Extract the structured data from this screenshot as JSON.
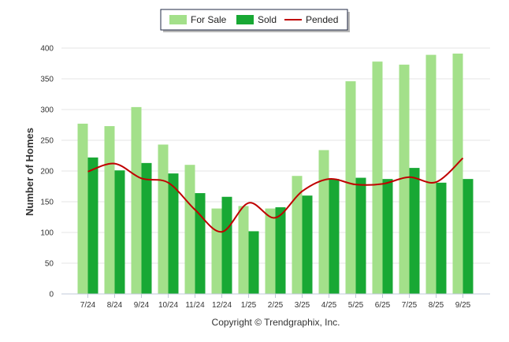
{
  "chart_data": {
    "type": "bar",
    "categories": [
      "7/24",
      "8/24",
      "9/24",
      "10/24",
      "11/24",
      "12/24",
      "1/25",
      "2/25",
      "3/25",
      "4/25",
      "5/25",
      "6/25",
      "7/25",
      "8/25",
      "9/25"
    ],
    "series": [
      {
        "name": "For Sale",
        "type": "bar",
        "color": "#a3e08a",
        "values": [
          277,
          273,
          304,
          243,
          210,
          139,
          143,
          139,
          192,
          234,
          346,
          378,
          373,
          389,
          391
        ]
      },
      {
        "name": "Sold",
        "type": "bar",
        "color": "#18a834",
        "values": [
          222,
          201,
          213,
          196,
          164,
          158,
          102,
          141,
          160,
          187,
          189,
          187,
          205,
          181,
          187
        ]
      },
      {
        "name": "Pended",
        "type": "line",
        "color": "#c00000",
        "values": [
          199,
          212,
          188,
          181,
          137,
          101,
          148,
          124,
          167,
          187,
          178,
          179,
          190,
          182,
          221
        ]
      }
    ],
    "ylabel": "Number of Homes",
    "xlabel": "",
    "ylim": [
      0,
      400
    ],
    "yticks": [
      0,
      50,
      100,
      150,
      200,
      250,
      300,
      350,
      400
    ],
    "grid": true,
    "legend_position": "top-center",
    "footer": "Copyright © Trendgraphix, Inc."
  }
}
